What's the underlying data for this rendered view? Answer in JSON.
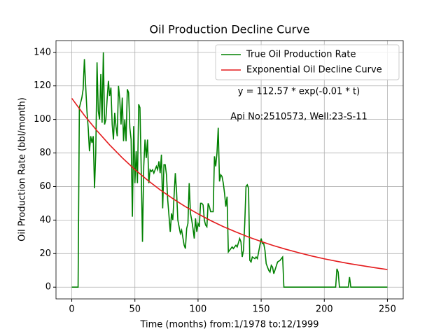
{
  "chart_data": {
    "type": "line",
    "title": "Oil Production Decline Curve",
    "xlabel": "Time (months) from:1/1978 to:12/1999",
    "ylabel": "Oil Production Rate (bbl/month)",
    "annotations": [
      "y = 112.57 * exp(-0.01 * t)",
      "Api No:2510573, Well:23-S-11"
    ],
    "xlim": [
      -12.5,
      262.5
    ],
    "xticks": [
      0,
      50,
      100,
      150,
      200,
      250
    ],
    "ylim": [
      -7,
      147
    ],
    "yticks": [
      0,
      20,
      40,
      60,
      80,
      100,
      120,
      140
    ],
    "grid": true,
    "legend": "upper right",
    "series": [
      {
        "name": "True Oil Production Rate",
        "color": "#008000",
        "x": [
          0,
          5,
          6,
          8,
          9,
          10,
          11,
          12,
          13,
          14,
          15,
          16,
          17,
          18,
          19,
          20,
          21,
          22,
          23,
          24,
          25,
          26,
          27,
          28,
          29,
          30,
          31,
          32,
          33,
          34,
          35,
          36,
          37,
          38,
          39,
          40,
          41,
          42,
          43,
          44,
          45,
          46,
          47,
          48,
          49,
          50,
          51,
          52,
          53,
          54,
          55,
          56,
          57,
          58,
          59,
          60,
          61,
          62,
          63,
          64,
          65,
          66,
          67,
          68,
          69,
          70,
          71,
          72,
          73,
          74,
          75,
          76,
          78,
          79,
          80,
          82,
          83,
          84,
          86,
          87,
          89,
          90,
          91,
          92,
          93,
          94,
          95,
          96,
          97,
          98,
          99,
          100,
          101,
          102,
          103,
          104,
          105,
          106,
          107,
          108,
          109,
          110,
          111,
          112,
          113,
          114,
          115,
          116,
          117,
          118,
          119,
          120,
          121,
          122,
          123,
          124,
          126,
          127,
          128,
          130,
          131,
          133,
          134,
          135,
          136,
          137,
          138,
          139,
          140,
          141,
          142,
          143,
          145,
          146,
          147,
          150,
          151,
          152,
          153,
          154,
          156,
          157,
          158,
          159,
          160,
          163,
          165,
          167,
          168,
          209,
          210,
          211,
          212,
          219,
          220,
          221,
          250
        ],
        "values": [
          0,
          0,
          107,
          113,
          118,
          136,
          120,
          105,
          95,
          81,
          90,
          86,
          90,
          59,
          80,
          134,
          105,
          100,
          127,
          98,
          140,
          97,
          100,
          112,
          123,
          114,
          119,
          97,
          88,
          104,
          96,
          90,
          120,
          112,
          97,
          113,
          87,
          100,
          87,
          118,
          116,
          95,
          88,
          42,
          96,
          62,
          81,
          62,
          109,
          107,
          70,
          27,
          72,
          88,
          77,
          88,
          62,
          70,
          69,
          70,
          68,
          70,
          72,
          70,
          75,
          68,
          79,
          47,
          73,
          73,
          67,
          52,
          33,
          44,
          40,
          68,
          57,
          40,
          32,
          34,
          25,
          23,
          35,
          38,
          62,
          44,
          40,
          35,
          29,
          41,
          33,
          38,
          36,
          50,
          50,
          49,
          40,
          37,
          36,
          50,
          48,
          45,
          45,
          45,
          78,
          72,
          80,
          95,
          63,
          67,
          66,
          62,
          56,
          48,
          54,
          21,
          23,
          24,
          23,
          25,
          24,
          29,
          27,
          18,
          22,
          38,
          60,
          61,
          59,
          16,
          15,
          18,
          17,
          18,
          17,
          29,
          26,
          26,
          22,
          14,
          10,
          9,
          13,
          12,
          8,
          15,
          16,
          18,
          0,
          0,
          11,
          9,
          0,
          0,
          6,
          0,
          0
        ]
      },
      {
        "name": "Exponential Oil Decline Curve",
        "color": "#e41a1c",
        "x": [
          0,
          10,
          20,
          30,
          40,
          50,
          60,
          70,
          80,
          90,
          100,
          110,
          120,
          130,
          140,
          150,
          160,
          170,
          180,
          190,
          200,
          210,
          220,
          230,
          240,
          250
        ],
        "values": [
          112.6,
          102.4,
          93.2,
          84.8,
          77.1,
          70.1,
          63.8,
          58.0,
          52.8,
          48.0,
          43.7,
          39.7,
          36.1,
          32.9,
          29.9,
          27.2,
          24.7,
          22.5,
          20.5,
          18.6,
          16.9,
          15.4,
          14.0,
          12.8,
          11.6,
          10.5
        ]
      }
    ]
  }
}
